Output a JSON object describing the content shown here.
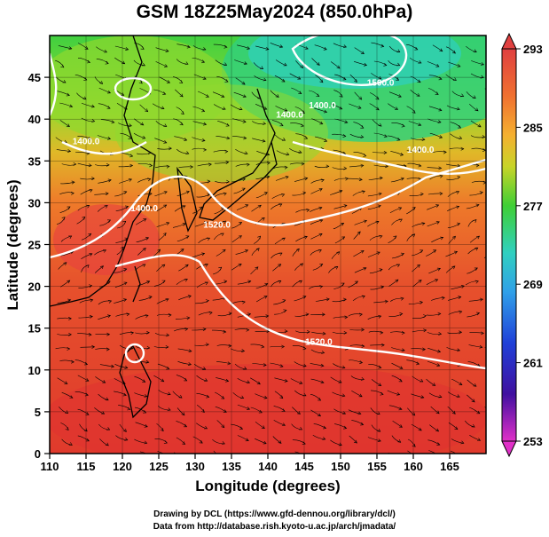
{
  "title": "GSM 18Z25May2024 (850.0hPa)",
  "credits": {
    "line1": "Drawing by DCL (https://www.gfd-dennou.org/library/dcl/)",
    "line2": "Data from http://database.rish.kyoto-u.ac.jp/arch/jmadata/"
  },
  "chart_data": {
    "type": "heatmap",
    "xlabel": "Longitude (degrees)",
    "ylabel": "Latitude  (degrees)",
    "xlim": [
      110,
      170
    ],
    "ylim": [
      0,
      50
    ],
    "x_ticks": [
      "110",
      "115",
      "120",
      "125",
      "130",
      "135",
      "140",
      "145",
      "150",
      "155",
      "160",
      "165"
    ],
    "y_ticks": [
      "0",
      "5",
      "10",
      "15",
      "20",
      "25",
      "30",
      "35",
      "40",
      "45"
    ],
    "colorbar": {
      "labels": [
        "293",
        "285",
        "277",
        "269",
        "261",
        "253"
      ],
      "range": [
        253,
        293
      ]
    },
    "contour_labels": [
      {
        "text": "1400.0",
        "lon": 147.5,
        "lat": 41.3
      },
      {
        "text": "1400.0",
        "lon": 143.0,
        "lat": 40.2
      },
      {
        "text": "1400.0",
        "lon": 115.0,
        "lat": 37.0
      },
      {
        "text": "1400.0",
        "lon": 161.0,
        "lat": 36.0
      },
      {
        "text": "1400.0",
        "lon": 123.0,
        "lat": 29.0
      },
      {
        "text": "1500.0",
        "lon": 155.5,
        "lat": 44.0
      },
      {
        "text": "1520.0",
        "lon": 133.0,
        "lat": 27.0
      },
      {
        "text": "1520.0",
        "lon": 147.0,
        "lat": 13.0
      }
    ],
    "colors": {
      "warm": "#e03c2a",
      "orange": "#f08a2c",
      "yellow": "#d6d61f",
      "green": "#4fcf33",
      "cyan": "#33cfa0"
    }
  }
}
